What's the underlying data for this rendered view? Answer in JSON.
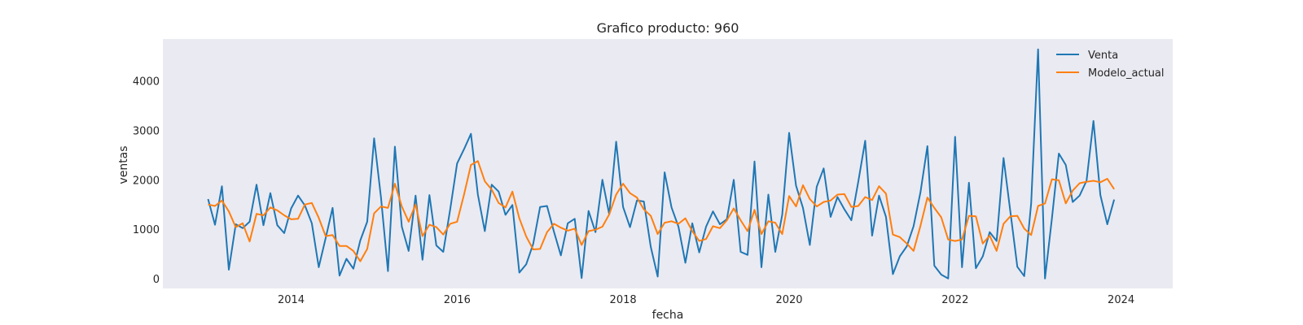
{
  "chart_data": {
    "type": "line",
    "title": "Grafico producto: 960",
    "xlabel": "fecha",
    "ylabel": "ventas",
    "xlim": [
      "2012-06-15",
      "2024-08-15"
    ],
    "ylim": [
      -200,
      4850
    ],
    "xticks": [
      2014,
      2016,
      2018,
      2020,
      2022,
      2024
    ],
    "yticks": [
      0,
      1000,
      2000,
      3000,
      4000
    ],
    "grid": false,
    "legend": "top-right",
    "x": [
      "2013-01",
      "2013-02",
      "2013-03",
      "2013-04",
      "2013-05",
      "2013-06",
      "2013-07",
      "2013-08",
      "2013-09",
      "2013-10",
      "2013-11",
      "2013-12",
      "2014-01",
      "2014-02",
      "2014-03",
      "2014-04",
      "2014-05",
      "2014-06",
      "2014-07",
      "2014-08",
      "2014-09",
      "2014-10",
      "2014-11",
      "2014-12",
      "2015-01",
      "2015-02",
      "2015-03",
      "2015-04",
      "2015-05",
      "2015-06",
      "2015-07",
      "2015-08",
      "2015-09",
      "2015-10",
      "2015-11",
      "2015-12",
      "2016-01",
      "2016-02",
      "2016-03",
      "2016-04",
      "2016-05",
      "2016-06",
      "2016-07",
      "2016-08",
      "2016-09",
      "2016-10",
      "2016-11",
      "2016-12",
      "2017-01",
      "2017-02",
      "2017-03",
      "2017-04",
      "2017-05",
      "2017-06",
      "2017-07",
      "2017-08",
      "2017-09",
      "2017-10",
      "2017-11",
      "2017-12",
      "2018-01",
      "2018-02",
      "2018-03",
      "2018-04",
      "2018-05",
      "2018-06",
      "2018-07",
      "2018-08",
      "2018-09",
      "2018-10",
      "2018-11",
      "2018-12",
      "2019-01",
      "2019-02",
      "2019-03",
      "2019-04",
      "2019-05",
      "2019-06",
      "2019-07",
      "2019-08",
      "2019-09",
      "2019-10",
      "2019-11",
      "2019-12",
      "2020-01",
      "2020-02",
      "2020-03",
      "2020-04",
      "2020-05",
      "2020-06",
      "2020-07",
      "2020-08",
      "2020-09",
      "2020-10",
      "2020-11",
      "2020-12",
      "2021-01",
      "2021-02",
      "2021-03",
      "2021-04",
      "2021-05",
      "2021-06",
      "2021-07",
      "2021-08",
      "2021-09",
      "2021-10",
      "2021-11",
      "2021-12",
      "2022-01",
      "2022-02",
      "2022-03",
      "2022-04",
      "2022-05",
      "2022-06",
      "2022-07",
      "2022-08",
      "2022-09",
      "2022-10",
      "2022-11",
      "2022-12",
      "2023-01",
      "2023-02",
      "2023-03",
      "2023-04",
      "2023-05",
      "2023-06",
      "2023-07",
      "2023-08",
      "2023-09",
      "2023-10",
      "2023-11",
      "2023-12"
    ],
    "series": [
      {
        "name": "Venta",
        "color": "#1f77b4",
        "values": [
          1610,
          1090,
          1870,
          180,
          1100,
          1020,
          1150,
          1900,
          1080,
          1730,
          1080,
          920,
          1420,
          1680,
          1480,
          1120,
          230,
          820,
          1430,
          60,
          400,
          200,
          770,
          1150,
          2840,
          1630,
          150,
          2670,
          1050,
          560,
          1680,
          380,
          1690,
          670,
          540,
          1400,
          2330,
          2620,
          2930,
          1700,
          960,
          1900,
          1760,
          1290,
          1490,
          120,
          290,
          700,
          1450,
          1470,
          950,
          470,
          1120,
          1210,
          10,
          1370,
          940,
          2000,
          1300,
          2770,
          1450,
          1040,
          1580,
          1560,
          640,
          40,
          2150,
          1440,
          1050,
          320,
          1120,
          530,
          1050,
          1360,
          1100,
          1200,
          2000,
          540,
          480,
          2370,
          230,
          1700,
          540,
          1290,
          2950,
          1880,
          1430,
          680,
          1860,
          2230,
          1250,
          1650,
          1400,
          1180,
          1960,
          2790,
          870,
          1680,
          1250,
          90,
          450,
          650,
          1060,
          1750,
          2680,
          260,
          80,
          0,
          2870,
          230,
          1940,
          210,
          450,
          940,
          760,
          2440,
          1350,
          240,
          50,
          1520,
          4640,
          0,
          1220,
          2530,
          2300,
          1550,
          1680,
          1980,
          3190,
          1690,
          1100,
          1600
        ]
      },
      {
        "name": "Modelo_actual",
        "color": "#ff7f0e",
        "values": [
          1500,
          1470,
          1580,
          1360,
          1040,
          1120,
          750,
          1310,
          1280,
          1440,
          1380,
          1280,
          1200,
          1210,
          1500,
          1530,
          1230,
          860,
          880,
          660,
          660,
          560,
          350,
          600,
          1320,
          1460,
          1430,
          1920,
          1460,
          1150,
          1500,
          860,
          1090,
          1040,
          890,
          1110,
          1150,
          1700,
          2300,
          2380,
          1970,
          1800,
          1530,
          1440,
          1760,
          1220,
          850,
          590,
          600,
          940,
          1110,
          1030,
          970,
          1010,
          680,
          960,
          990,
          1050,
          1300,
          1700,
          1920,
          1730,
          1640,
          1400,
          1270,
          900,
          1130,
          1160,
          1110,
          1220,
          960,
          760,
          800,
          1060,
          1020,
          1180,
          1420,
          1180,
          960,
          1390,
          900,
          1160,
          1130,
          900,
          1670,
          1460,
          1890,
          1610,
          1460,
          1550,
          1580,
          1700,
          1710,
          1450,
          1470,
          1650,
          1590,
          1870,
          1720,
          890,
          840,
          710,
          560,
          1070,
          1640,
          1430,
          1240,
          790,
          760,
          790,
          1270,
          1260,
          710,
          870,
          560,
          1110,
          1260,
          1270,
          1010,
          880,
          1470,
          1520,
          2010,
          1990,
          1520,
          1780,
          1930,
          1960,
          1980,
          1950,
          2020,
          1810
        ]
      }
    ]
  }
}
